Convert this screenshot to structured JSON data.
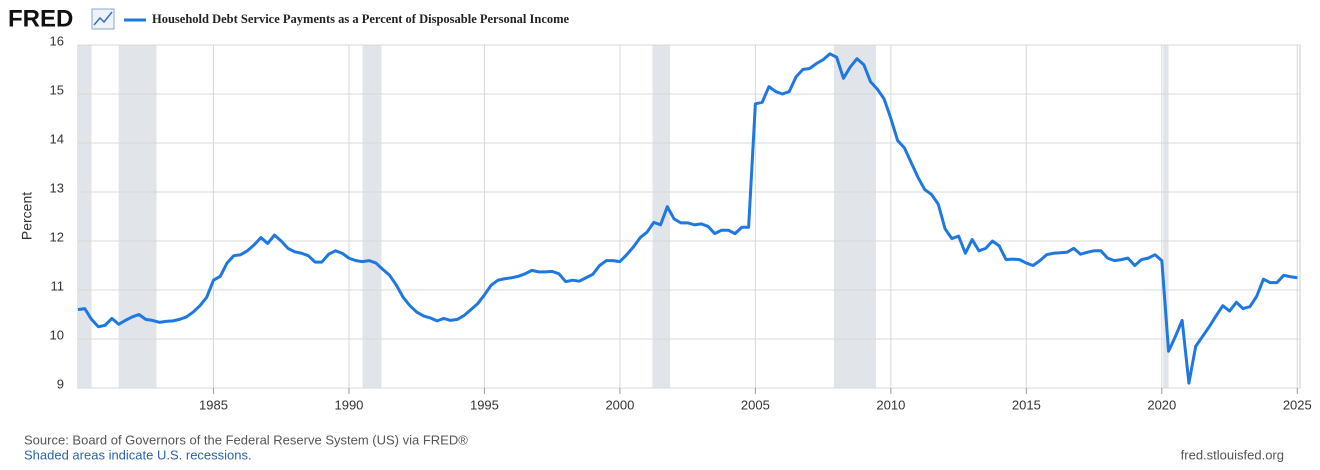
{
  "logo": "FRED",
  "chart_data": {
    "type": "line",
    "title": "Household Debt Service Payments as a Percent of Disposable Personal Income",
    "y_label": "Percent",
    "source": "Source: Board of Governors of the Federal Reserve System (US) via FRED®",
    "note": "Shaded areas indicate U.S. recessions.",
    "url": "fred.stlouisfed.org",
    "xlim": [
      1980,
      2025.1
    ],
    "xticks": [
      1985,
      1990,
      1995,
      2000,
      2005,
      2010,
      2015,
      2020,
      2025
    ],
    "ylim": [
      9,
      16
    ],
    "yticks": [
      9,
      10,
      11,
      12,
      13,
      14,
      15,
      16
    ],
    "grid": true,
    "recessions": [
      [
        1980.0,
        1980.5
      ],
      [
        1981.5,
        1982.9
      ],
      [
        1990.5,
        1991.2
      ],
      [
        2001.2,
        2001.85
      ],
      [
        2007.9,
        2009.45
      ],
      [
        2020.05,
        2020.25
      ]
    ],
    "x": [
      1980,
      1980.25,
      1980.5,
      1980.75,
      1981,
      1981.25,
      1981.5,
      1981.75,
      1982,
      1982.25,
      1982.5,
      1982.75,
      1983,
      1983.25,
      1983.5,
      1983.75,
      1984,
      1984.25,
      1984.5,
      1984.75,
      1985,
      1985.25,
      1985.5,
      1985.75,
      1986,
      1986.25,
      1986.5,
      1986.75,
      1987,
      1987.25,
      1987.5,
      1987.75,
      1988,
      1988.25,
      1988.5,
      1988.75,
      1989,
      1989.25,
      1989.5,
      1989.75,
      1990,
      1990.25,
      1990.5,
      1990.75,
      1991,
      1991.25,
      1991.5,
      1991.75,
      1992,
      1992.25,
      1992.5,
      1992.75,
      1993,
      1993.25,
      1993.5,
      1993.75,
      1994,
      1994.25,
      1994.5,
      1994.75,
      1995,
      1995.25,
      1995.5,
      1995.75,
      1996,
      1996.25,
      1996.5,
      1996.75,
      1997,
      1997.25,
      1997.5,
      1997.75,
      1998,
      1998.25,
      1998.5,
      1998.75,
      1999,
      1999.25,
      1999.5,
      1999.75,
      2000,
      2000.25,
      2000.5,
      2000.75,
      2001,
      2001.25,
      2001.5,
      2001.75,
      2002,
      2002.25,
      2002.5,
      2002.75,
      2003,
      2003.25,
      2003.5,
      2003.75,
      2004,
      2004.25,
      2004.5,
      2004.75,
      2005,
      2005.25,
      2005.5,
      2005.75,
      2006,
      2006.25,
      2006.5,
      2006.75,
      2007,
      2007.25,
      2007.5,
      2007.75,
      2008,
      2008.25,
      2008.5,
      2008.75,
      2009,
      2009.25,
      2009.5,
      2009.75,
      2010,
      2010.25,
      2010.5,
      2010.75,
      2011,
      2011.25,
      2011.5,
      2011.75,
      2012,
      2012.25,
      2012.5,
      2012.75,
      2013,
      2013.25,
      2013.5,
      2013.75,
      2014,
      2014.25,
      2014.5,
      2014.75,
      2015,
      2015.25,
      2015.5,
      2015.75,
      2016,
      2016.25,
      2016.5,
      2016.75,
      2017,
      2017.25,
      2017.5,
      2017.75,
      2018,
      2018.25,
      2018.5,
      2018.75,
      2019,
      2019.25,
      2019.5,
      2019.75,
      2020,
      2020.25,
      2020.5,
      2020.75,
      2021,
      2021.25,
      2021.5,
      2021.75,
      2022,
      2022.25,
      2022.5,
      2022.75,
      2023,
      2023.25,
      2023.5,
      2023.75,
      2024,
      2024.25,
      2024.5,
      2024.75,
      2025
    ],
    "series": [
      {
        "name": "Household Debt Service Payments as a Percent of Disposable Personal Income",
        "color": "#1e78e0",
        "values": [
          10.6,
          10.62,
          10.4,
          10.25,
          10.28,
          10.42,
          10.3,
          10.38,
          10.45,
          10.5,
          10.4,
          10.38,
          10.34,
          10.36,
          10.37,
          10.4,
          10.45,
          10.55,
          10.68,
          10.85,
          11.2,
          11.28,
          11.55,
          11.7,
          11.72,
          11.8,
          11.92,
          12.07,
          11.95,
          12.12,
          12.0,
          11.85,
          11.78,
          11.75,
          11.7,
          11.57,
          11.57,
          11.73,
          11.8,
          11.75,
          11.65,
          11.6,
          11.58,
          11.6,
          11.55,
          11.42,
          11.3,
          11.1,
          10.85,
          10.68,
          10.55,
          10.47,
          10.43,
          10.37,
          10.42,
          10.38,
          10.4,
          10.48,
          10.6,
          10.72,
          10.9,
          11.1,
          11.2,
          11.23,
          11.25,
          11.28,
          11.33,
          11.4,
          11.37,
          11.37,
          11.38,
          11.33,
          11.17,
          11.2,
          11.18,
          11.25,
          11.32,
          11.5,
          11.6,
          11.6,
          11.58,
          11.72,
          11.88,
          12.07,
          12.18,
          12.38,
          12.33,
          12.7,
          12.45,
          12.37,
          12.37,
          12.33,
          12.35,
          12.3,
          12.15,
          12.22,
          12.22,
          12.15,
          12.28,
          12.28,
          14.8,
          14.83,
          15.15,
          15.05,
          15.0,
          15.05,
          15.35,
          15.5,
          15.52,
          15.62,
          15.7,
          15.82,
          15.75,
          15.32,
          15.55,
          15.72,
          15.6,
          15.25,
          15.1,
          14.9,
          14.5,
          14.05,
          13.9,
          13.6,
          13.3,
          13.05,
          12.95,
          12.75,
          12.25,
          12.05,
          12.1,
          11.75,
          12.03,
          11.8,
          11.85,
          12.0,
          11.9,
          11.62,
          11.63,
          11.62,
          11.55,
          11.5,
          11.6,
          11.72,
          11.75,
          11.76,
          11.77,
          11.85,
          11.73,
          11.77,
          11.8,
          11.8,
          11.65,
          11.6,
          11.62,
          11.65,
          11.5,
          11.62,
          11.65,
          11.72,
          11.6,
          9.75,
          10.05,
          10.38,
          9.1,
          9.85,
          10.05,
          10.25,
          10.47,
          10.68,
          10.57,
          10.75,
          10.62,
          10.66,
          10.87,
          11.22,
          11.15,
          11.15,
          11.3,
          11.27,
          11.25
        ]
      }
    ]
  }
}
